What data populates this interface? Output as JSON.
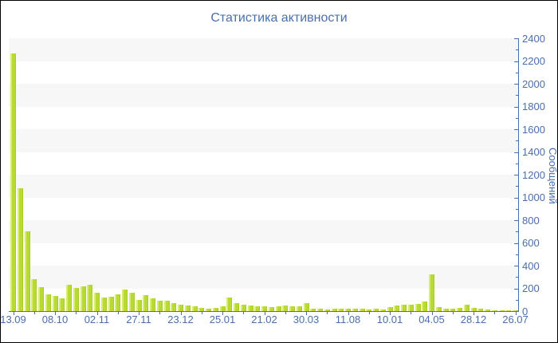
{
  "chart_data": {
    "type": "bar",
    "title": "Статистика активности",
    "ylabel": "Сообщений",
    "xlabel": "",
    "ylim": [
      0,
      2400
    ],
    "y_tick_step": 200,
    "y_minor_tick_step": 100,
    "legend": "none",
    "grid": "alternating-horizontal-bands",
    "x_tick_labels": [
      "13.09",
      "08.10",
      "02.11",
      "27.11",
      "23.12",
      "25.01",
      "21.02",
      "30.03",
      "11.08",
      "10.01",
      "04.05",
      "28.12",
      "26.07"
    ],
    "bars_per_label_interval": 6,
    "values": [
      2270,
      1080,
      700,
      280,
      210,
      150,
      135,
      115,
      230,
      205,
      220,
      230,
      160,
      120,
      125,
      150,
      190,
      160,
      100,
      140,
      115,
      90,
      90,
      70,
      55,
      50,
      40,
      30,
      20,
      25,
      40,
      120,
      70,
      55,
      50,
      40,
      40,
      35,
      40,
      50,
      40,
      40,
      70,
      20,
      20,
      15,
      20,
      20,
      20,
      20,
      20,
      15,
      20,
      15,
      35,
      50,
      55,
      55,
      60,
      85,
      320,
      35,
      20,
      20,
      25,
      55,
      30,
      20,
      15,
      10,
      10,
      10,
      10
    ],
    "colors": {
      "bar": "#b8da33",
      "bar_highlight": "#d7ec72",
      "axis": "#4a6fad",
      "text": "#4a6fad",
      "band": "#f7f7f7",
      "background": "#ffffff"
    }
  }
}
